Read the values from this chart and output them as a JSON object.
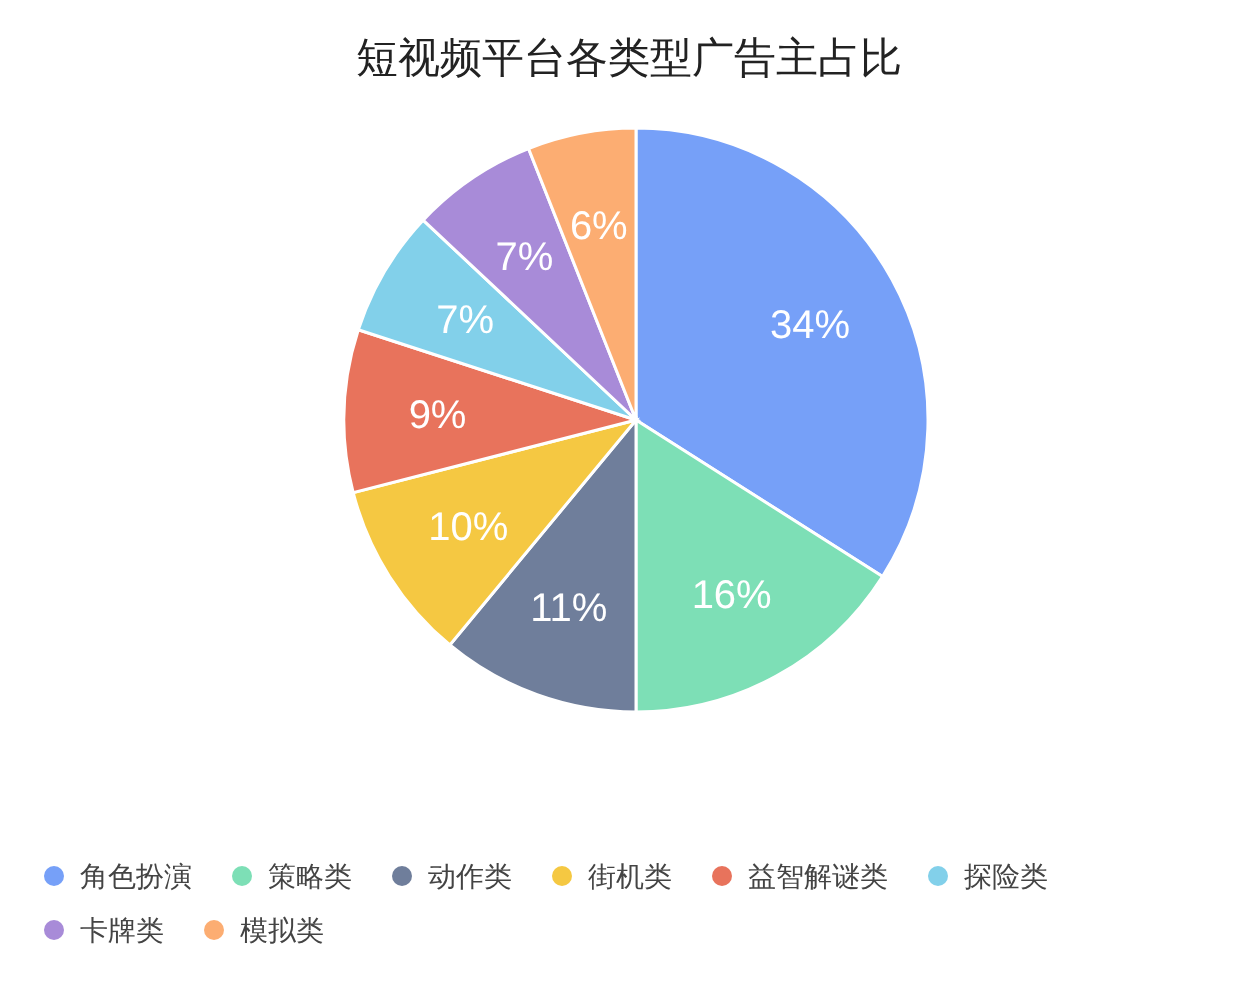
{
  "chart_data": {
    "type": "pie",
    "title": "短视频平台各类型广告主占比",
    "categories": [
      "角色扮演",
      "策略类",
      "动作类",
      "街机类",
      "益智解谜类",
      "探险类",
      "卡牌类",
      "模拟类"
    ],
    "values": [
      34,
      16,
      11,
      10,
      9,
      7,
      7,
      6
    ],
    "colors": [
      "#76a0f8",
      "#7ddfb6",
      "#6f7e9b",
      "#f5c842",
      "#e8735c",
      "#82d0ea",
      "#a88bd8",
      "#fcad72"
    ],
    "value_labels": [
      "34%",
      "16%",
      "11%",
      "10%",
      "9%",
      "7%",
      "7%",
      "6%"
    ],
    "legend": "bottom"
  }
}
